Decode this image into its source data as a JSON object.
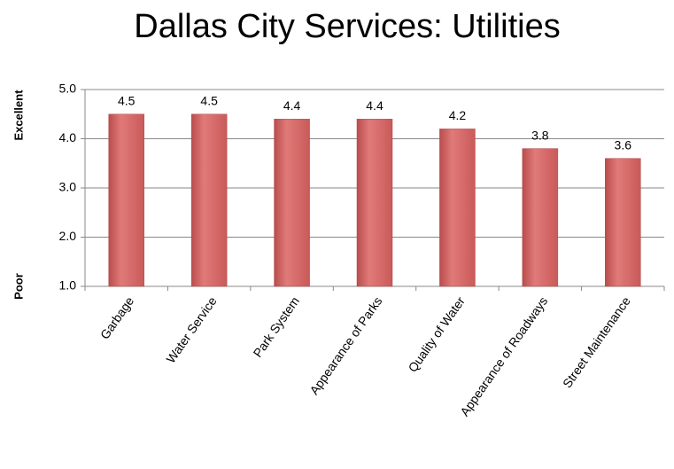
{
  "chart_data": {
    "type": "bar",
    "title": "Dallas City Services:  Utilities",
    "ylabel_top": "Excellent",
    "ylabel_bottom": "Poor",
    "categories": [
      "Garbage",
      "Water Service",
      "Park System",
      "Appearance of Parks",
      "Quality of Water",
      "Appearance of Roadways",
      "Street Maintenance"
    ],
    "values": [
      4.5,
      4.5,
      4.4,
      4.4,
      4.2,
      3.8,
      3.6
    ],
    "color": "#d96b6a",
    "ylim": [
      1,
      5
    ],
    "yticks": [
      {
        "value": 1,
        "label": "1.0"
      },
      {
        "value": 2,
        "label": "2.0"
      },
      {
        "value": 3,
        "label": "3.0"
      },
      {
        "value": 4,
        "label": "4.0"
      },
      {
        "value": 5,
        "label": "5.0"
      }
    ],
    "grid": true
  }
}
